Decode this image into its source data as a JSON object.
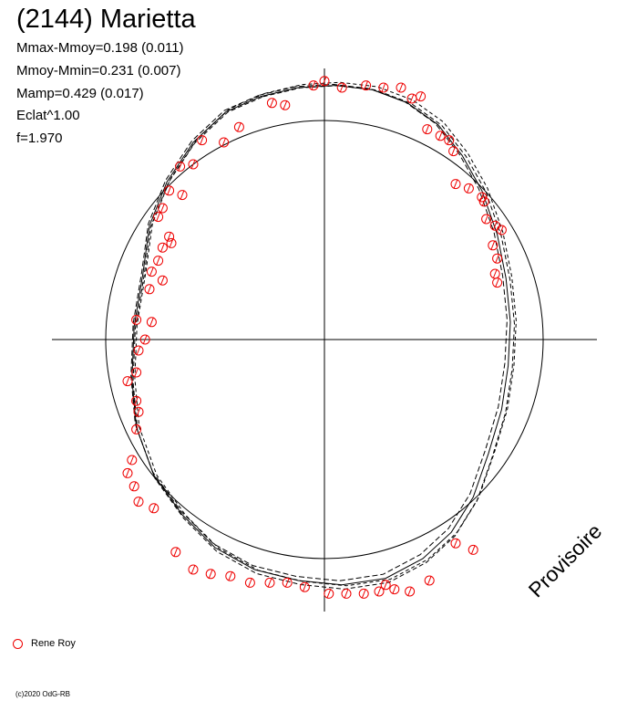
{
  "header": {
    "title": "(2144) Marietta",
    "stats": [
      "Mmax-Mmoy=0.198 (0.011)",
      "Mmoy-Mmin=0.231 (0.007)",
      "Mamp=0.429 (0.017)",
      "Eclat^1.00",
      "f=1.970"
    ]
  },
  "legend": {
    "label": "Rene Roy"
  },
  "watermark": "Provisoire",
  "copyright": "(c)2020 OdG-RB",
  "colors": {
    "observations": "#ee0000",
    "axes": "#000000",
    "model": "#000000"
  },
  "chart_data": {
    "type": "scatter",
    "subtype": "polar lightcurve",
    "grid": false,
    "legend_position": "bottom-left",
    "reference_circle_radius": 1.0,
    "xlim": [
      -1.25,
      1.25
    ],
    "ylim": [
      -1.25,
      1.25
    ],
    "series": [
      {
        "name": "Rene Roy",
        "marker": "open-circle-slash",
        "points": [
          [
            -0.05,
            1.16
          ],
          [
            0.0,
            1.18
          ],
          [
            0.08,
            1.15
          ],
          [
            0.19,
            1.16
          ],
          [
            0.27,
            1.15
          ],
          [
            0.35,
            1.15
          ],
          [
            0.4,
            1.1
          ],
          [
            0.44,
            1.11
          ],
          [
            0.47,
            0.96
          ],
          [
            0.53,
            0.93
          ],
          [
            0.57,
            0.91
          ],
          [
            0.59,
            0.86
          ],
          [
            0.6,
            0.71
          ],
          [
            0.66,
            0.69
          ],
          [
            0.72,
            0.65
          ],
          [
            0.73,
            0.63
          ],
          [
            0.74,
            0.55
          ],
          [
            0.78,
            0.52
          ],
          [
            0.81,
            0.5
          ],
          [
            0.77,
            0.43
          ],
          [
            0.79,
            0.37
          ],
          [
            0.78,
            0.3
          ],
          [
            0.79,
            0.26
          ],
          [
            -0.18,
            1.07
          ],
          [
            -0.24,
            1.08
          ],
          [
            -0.39,
            0.97
          ],
          [
            -0.46,
            0.9
          ],
          [
            -0.56,
            0.91
          ],
          [
            -0.6,
            0.8
          ],
          [
            -0.66,
            0.79
          ],
          [
            -0.71,
            0.68
          ],
          [
            -0.65,
            0.66
          ],
          [
            -0.74,
            0.6
          ],
          [
            -0.76,
            0.56
          ],
          [
            -0.71,
            0.47
          ],
          [
            -0.7,
            0.44
          ],
          [
            -0.74,
            0.42
          ],
          [
            -0.76,
            0.36
          ],
          [
            -0.79,
            0.31
          ],
          [
            -0.74,
            0.27
          ],
          [
            -0.8,
            0.23
          ],
          [
            -0.79,
            0.08
          ],
          [
            -0.86,
            0.09
          ],
          [
            -0.82,
            0.0
          ],
          [
            -0.85,
            -0.05
          ],
          [
            -0.86,
            -0.15
          ],
          [
            -0.9,
            -0.19
          ],
          [
            -0.86,
            -0.28
          ],
          [
            -0.85,
            -0.33
          ],
          [
            -0.86,
            -0.41
          ],
          [
            -0.88,
            -0.55
          ],
          [
            -0.9,
            -0.61
          ],
          [
            -0.87,
            -0.67
          ],
          [
            -0.85,
            -0.74
          ],
          [
            -0.78,
            -0.77
          ],
          [
            -0.68,
            -0.97
          ],
          [
            -0.6,
            -1.05
          ],
          [
            -0.52,
            -1.07
          ],
          [
            -0.43,
            -1.08
          ],
          [
            -0.34,
            -1.11
          ],
          [
            -0.25,
            -1.11
          ],
          [
            -0.17,
            -1.11
          ],
          [
            -0.09,
            -1.13
          ],
          [
            0.02,
            -1.16
          ],
          [
            0.1,
            -1.16
          ],
          [
            0.18,
            -1.16
          ],
          [
            0.25,
            -1.15
          ],
          [
            0.28,
            -1.12
          ],
          [
            0.32,
            -1.14
          ],
          [
            0.39,
            -1.15
          ],
          [
            0.48,
            -1.1
          ],
          [
            0.6,
            -0.93
          ],
          [
            0.68,
            -0.96
          ]
        ]
      }
    ]
  }
}
